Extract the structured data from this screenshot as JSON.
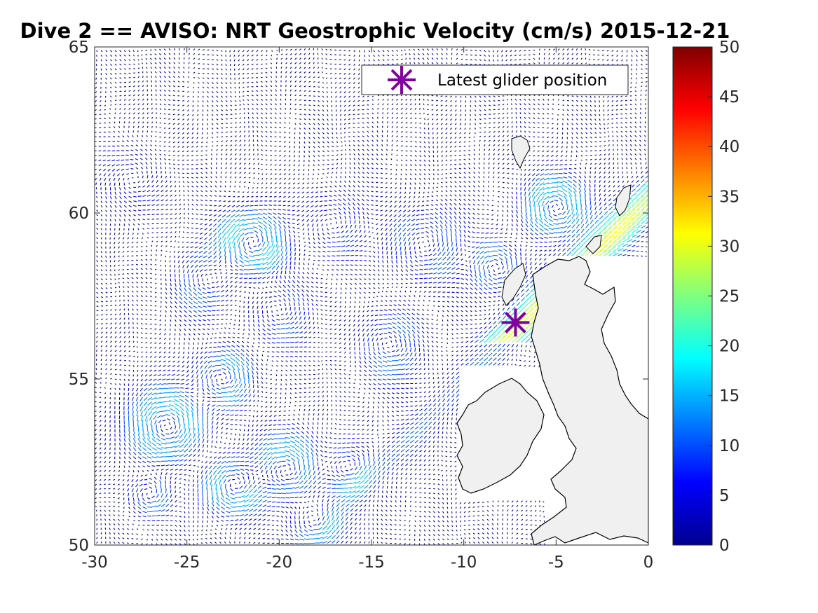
{
  "chart_data": {
    "type": "quiver-map",
    "title": "Dive 2 == AVISO: NRT Geostrophic Velocity (cm/s) 2015-12-21",
    "xlabel": "",
    "ylabel": "",
    "xlim": [
      -30,
      0
    ],
    "ylim": [
      50,
      65
    ],
    "x_ticks": [
      -30,
      -25,
      -20,
      -15,
      -10,
      -5,
      0
    ],
    "y_ticks": [
      50,
      55,
      60,
      65
    ],
    "x_tick_labels": [
      "-30",
      "-25",
      "-20",
      "-15",
      "-10",
      "-5",
      "0"
    ],
    "y_tick_labels": [
      "50",
      "55",
      "60",
      "65"
    ],
    "colorbar": {
      "colormap": "jet",
      "clim": [
        0,
        50
      ],
      "ticks": [
        0,
        5,
        10,
        15,
        20,
        25,
        30,
        35,
        40,
        45,
        50
      ],
      "tick_labels": [
        "0",
        "5",
        "10",
        "15",
        "20",
        "25",
        "30",
        "35",
        "40",
        "45",
        "50"
      ]
    },
    "legend": {
      "placement": "top-right",
      "entries": [
        {
          "label": "Latest glider position",
          "marker": "asterisk",
          "color": "#8000a0"
        }
      ]
    },
    "glider_position": {
      "lon": -7.2,
      "lat": 56.7
    },
    "land_color": "#f0f0f0"
  }
}
